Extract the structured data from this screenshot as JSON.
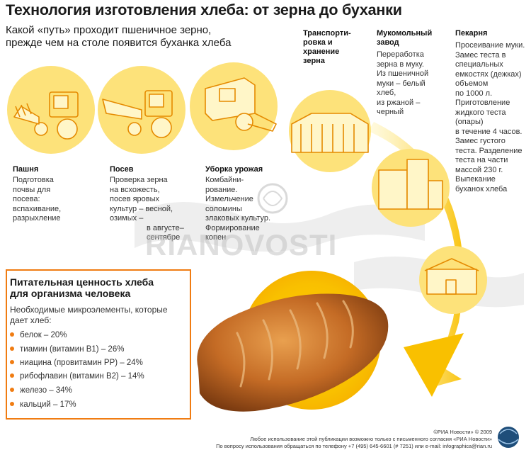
{
  "title": "Технология изготовления хлеба: от зерна до буханки",
  "subtitle": [
    "Какой «путь» проходит пшеничное зерно,",
    "прежде чем на столе появится буханка хлеба"
  ],
  "stages": [
    {
      "title": [
        "Пашня"
      ],
      "text": [
        "Подготовка",
        "почвы для",
        "посева:",
        "вспахивание,",
        "разрыхление"
      ]
    },
    {
      "title": [
        "Посев"
      ],
      "text": [
        "Проверка зерна",
        "на всхожесть,",
        "посев яровых",
        "культур – весной,",
        "озимых –",
        "в августе–",
        "сентябре"
      ]
    },
    {
      "title": [
        "Уборка урожая"
      ],
      "text": [
        "Комбайни-",
        "рование.",
        "Измельчение",
        "соломины",
        "злаковых культур.",
        "Формирование",
        "копен"
      ]
    },
    {
      "title": [
        "Транспорти-",
        "ровка и",
        "хранение",
        "зерна"
      ],
      "text": []
    },
    {
      "title": [
        "Мукомольный",
        "завод"
      ],
      "text": [
        "Переработка",
        "зерна в муку.",
        "Из пшеничной",
        "муки – белый",
        "хлеб,",
        "из ржаной –",
        "черный"
      ]
    },
    {
      "title": [
        "Пекарня"
      ],
      "text": [
        "Просеивание муки.",
        "Замес теста в",
        "специальных",
        "емкостях (дежках)",
        "объемом",
        "по 1000 л.",
        "Приготовление",
        "жидкого теста",
        "(опары)",
        "в течение 4 часов.",
        "Замес густого",
        "теста. Разделение",
        "теста на части",
        "массой 230 г.",
        "Выпекание",
        "буханок хлеба"
      ]
    }
  ],
  "nutrition": {
    "title": [
      "Питательная ценность хлеба",
      "для организма человека"
    ],
    "intro": [
      "Необходимые микроэлементы, которые",
      "дает хлеб:"
    ],
    "items": [
      "белок – 20%",
      "тиамин (витамин В1) – 26%",
      "ниацина (провитамин РР) – 24%",
      "рибофлавин (витамин В2) – 14%",
      "железо – 34%",
      "кальций – 17%"
    ]
  },
  "watermark": "RIANOVOSTI",
  "footer": [
    "©РИА Новости» © 2009",
    "Любое использование этой публикации возможно только с письменного согласия «РИА Новости»",
    "По вопросу использования обращаться по телефону +7 (495) 645-6601 (# 7251) или e-mail: infographica@rian.ru"
  ],
  "colors": {
    "accent": "#f07c12",
    "yellow": "#f9c000",
    "circle": "#fde27a",
    "bread": "#b5601e"
  }
}
